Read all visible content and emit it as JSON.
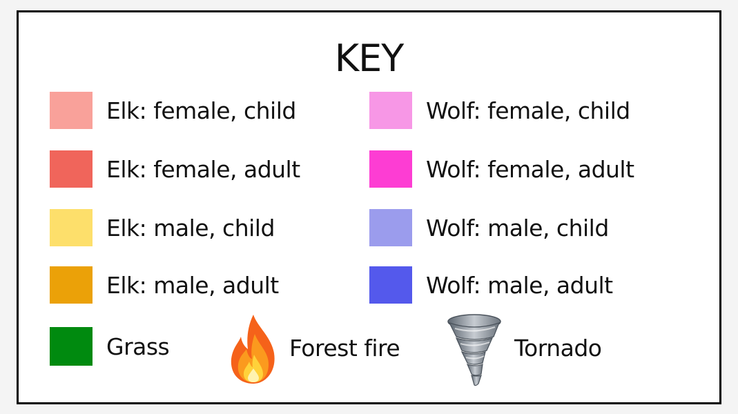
{
  "key": {
    "title": "KEY",
    "items": [
      {
        "label": "Elk: female, child",
        "color": "#f9a19a"
      },
      {
        "label": "Elk: female, adult",
        "color": "#f0655b"
      },
      {
        "label": "Elk: male, child",
        "color": "#fddf6b"
      },
      {
        "label": "Elk: male, adult",
        "color": "#eba108"
      },
      {
        "label": "Wolf: female, child",
        "color": "#f797e6"
      },
      {
        "label": "Wolf: female, adult",
        "color": "#fd3dd3"
      },
      {
        "label": "Wolf: male, child",
        "color": "#9b9ced"
      },
      {
        "label": "Wolf: male, adult",
        "color": "#5459ec"
      },
      {
        "label": "Grass",
        "color": "#008a0f"
      },
      {
        "label": "Forest fire",
        "icon": "fire-icon"
      },
      {
        "label": "Tornado",
        "icon": "tornado-icon"
      }
    ]
  }
}
